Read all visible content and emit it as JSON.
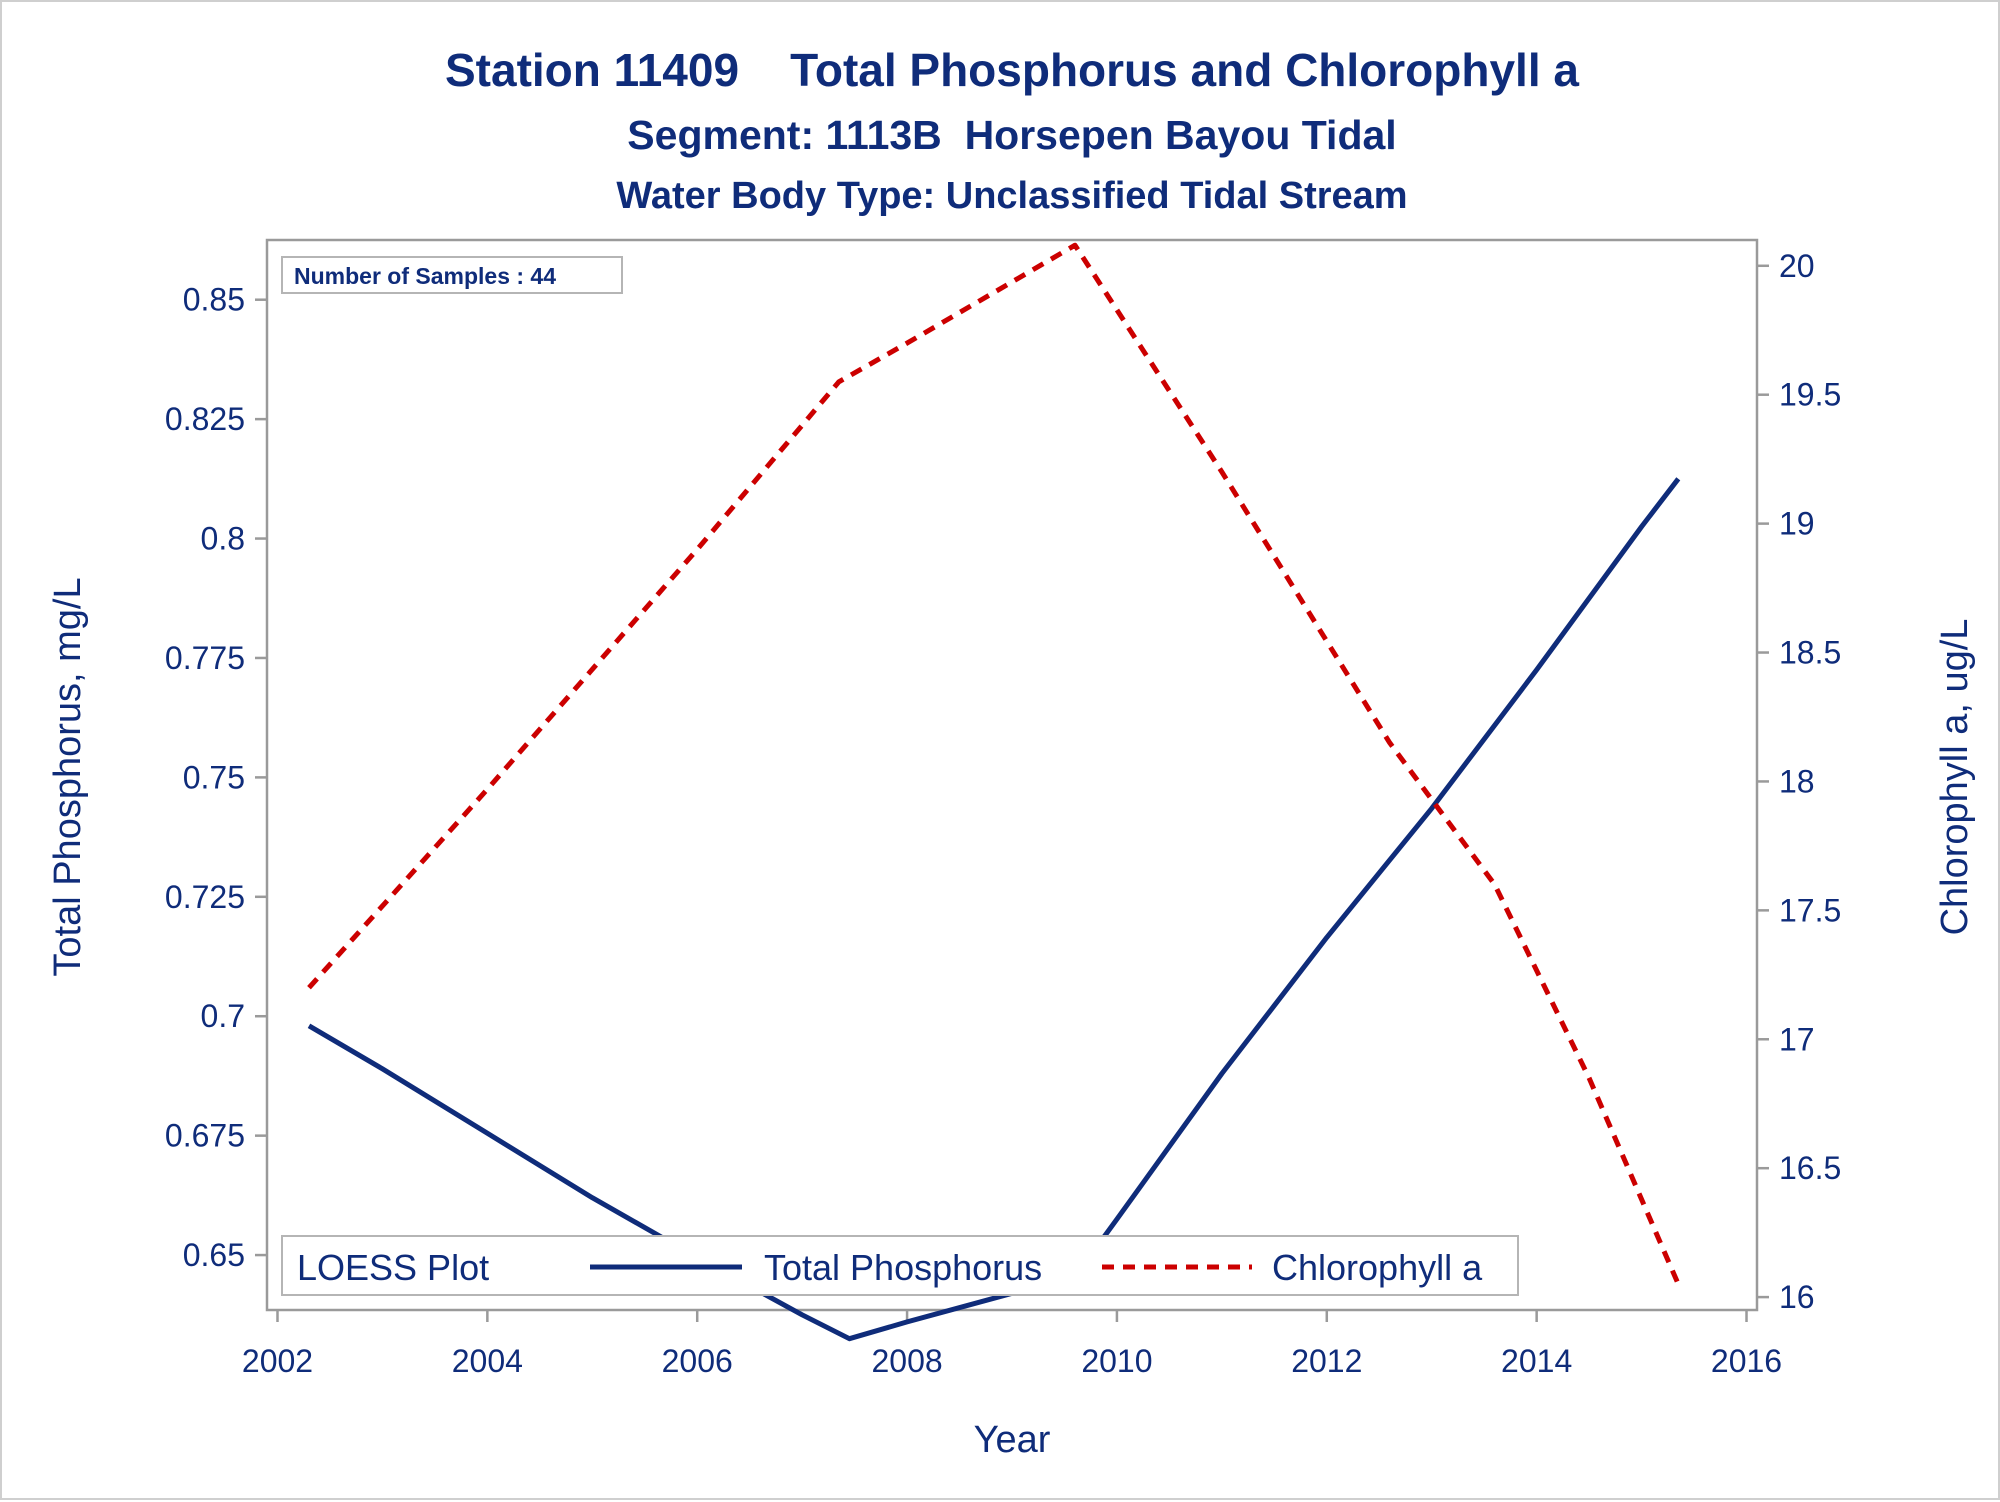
{
  "chart_data": {
    "type": "line",
    "title": "Station 11409    Total Phosphorus and Chlorophyll a",
    "subtitle": "Segment: 1113B  Horsepen Bayou Tidal",
    "subtitle2": "Water Body Type: Unclassified Tidal Stream",
    "xlabel": "Year",
    "ylabel": "Total Phosphorus, mg/L",
    "y2label": "Chlorophyll a, ug/L",
    "xlim": [
      2001.9,
      2016.1
    ],
    "ylim": [
      0.6385,
      0.8625
    ],
    "y2lim": [
      15.95,
      20.1
    ],
    "x_ticks": [
      2002,
      2004,
      2006,
      2008,
      2010,
      2012,
      2014,
      2016
    ],
    "y_ticks": [
      0.65,
      0.675,
      0.7,
      0.725,
      0.75,
      0.775,
      0.8,
      0.825,
      0.85
    ],
    "y_tick_labels": [
      "0.65",
      "0.675",
      "0.7",
      "0.725",
      "0.75",
      "0.775",
      "0.8",
      "0.825",
      "0.85"
    ],
    "y2_ticks": [
      16,
      16.5,
      17,
      17.5,
      18,
      18.5,
      19,
      19.5,
      20
    ],
    "y2_tick_labels": [
      "16",
      "16.5",
      "17",
      "17.5",
      "18",
      "18.5",
      "19",
      "19.5",
      "20"
    ],
    "inset_label": "Number of Samples : 44",
    "legend": {
      "title": "LOESS Plot",
      "placement": "bottom-inside"
    },
    "series": [
      {
        "name": "Total Phosphorus",
        "axis": "left",
        "color": "#0f2c7a",
        "style": "solid",
        "x": [
          2002.3,
          2003.0,
          2004.0,
          2005.0,
          2006.0,
          2007.0,
          2007.45,
          2008.0,
          2009.0,
          2009.6,
          2010.0,
          2011.0,
          2012.0,
          2013.0,
          2014.0,
          2015.0,
          2015.35
        ],
        "y": [
          0.698,
          0.689,
          0.6755,
          0.662,
          0.6495,
          0.6375,
          0.6325,
          0.636,
          0.642,
          0.6455,
          0.6575,
          0.688,
          0.7165,
          0.7435,
          0.7725,
          0.8025,
          0.8125
        ]
      },
      {
        "name": "Chlorophyll a",
        "axis": "right",
        "color": "#cc0000",
        "style": "dashed",
        "x": [
          2002.3,
          2004.0,
          2006.0,
          2007.35,
          2008.0,
          2009.6,
          2011.0,
          2012.6,
          2013.6,
          2014.5,
          2015.35
        ],
        "y": [
          17.2,
          17.97,
          18.9,
          19.55,
          19.7,
          20.08,
          19.2,
          18.15,
          17.6,
          16.85,
          16.05
        ]
      }
    ]
  }
}
